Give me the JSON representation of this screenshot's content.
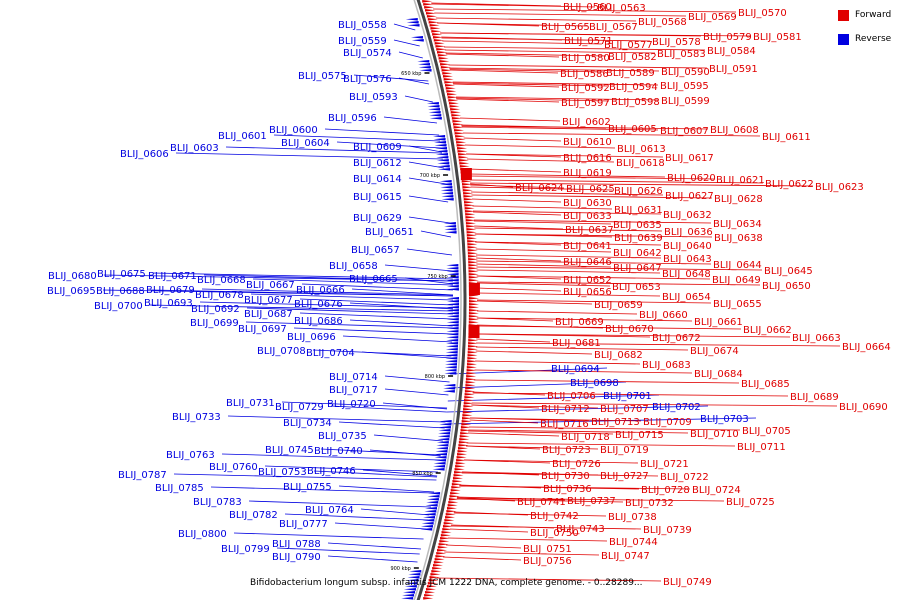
{
  "legend": {
    "forward_label": "Forward",
    "reverse_label": "Reverse",
    "forward_color": "#e00000",
    "reverse_color": "#0000e0"
  },
  "caption": "Bifidobacterium longum subsp. infantis JCM 1222 DNA, complete genome. - 0..28289...",
  "ticks": [
    "650 kbp",
    "700 kbp",
    "750 kbp",
    "800 kbp",
    "850 kbp",
    "900 kbp"
  ],
  "reverse_labels": [
    "BLIJ_0558",
    "BLIJ_0559",
    "BLIJ_0574",
    "BLIJ_0575",
    "BLIJ_0576",
    "BLIJ_0593",
    "BLIJ_0596",
    "BLIJ_0601",
    "BLIJ_0600",
    "BLIJ_0604",
    "BLIJ_0603",
    "BLIJ_0606",
    "BLIJ_0609",
    "BLIJ_0612",
    "BLIJ_0614",
    "BLIJ_0615",
    "BLIJ_0629",
    "BLIJ_0651",
    "BLIJ_0657",
    "BLIJ_0658",
    "BLIJ_0665",
    "BLIJ_0680",
    "BLIJ_0675",
    "BLIJ_0671",
    "BLIJ_0668",
    "BLIJ_0667",
    "BLIJ_0666",
    "BLIJ_0695",
    "BLIJ_0688",
    "BLIJ_0679",
    "BLIJ_0678",
    "BLIJ_0677",
    "BLIJ_0676",
    "BLIJ_0700",
    "BLIJ_0693",
    "BLIJ_0692",
    "BLIJ_0687",
    "BLIJ_0699",
    "BLIJ_0697",
    "BLIJ_0686",
    "BLIJ_0696",
    "BLIJ_0708",
    "BLIJ_0704",
    "BLIJ_0694",
    "BLIJ_0698",
    "BLIJ_0701",
    "BLIJ_0702",
    "BLIJ_0703",
    "BLIJ_0714",
    "BLIJ_0717",
    "BLIJ_0720",
    "BLIJ_0733",
    "BLIJ_0731",
    "BLIJ_0729",
    "BLIJ_0734",
    "BLIJ_0735",
    "BLIJ_0745",
    "BLIJ_0740",
    "BLIJ_0763",
    "BLIJ_0760",
    "BLIJ_0753",
    "BLIJ_0746",
    "BLIJ_0755",
    "BLIJ_0787",
    "BLIJ_0785",
    "BLIJ_0764",
    "BLIJ_0783",
    "BLIJ_0782",
    "BLIJ_0777",
    "BLIJ_0788",
    "BLIJ_0800",
    "BLIJ_0799",
    "BLIJ_0790"
  ],
  "forward_labels": [
    "BLIJ_0560",
    "BLIJ_0563",
    "BLIJ_0565",
    "BLIJ_0567",
    "BLIJ_0568",
    "BLIJ_0569",
    "BLIJ_0570",
    "BLIJ_0571",
    "BLIJ_0577",
    "BLIJ_0578",
    "BLIJ_0579",
    "BLIJ_0581",
    "BLIJ_0580",
    "BLIJ_0582",
    "BLIJ_0583",
    "BLIJ_0584",
    "BLIJ_0586",
    "BLIJ_0589",
    "BLIJ_0590",
    "BLIJ_0591",
    "BLIJ_0592",
    "BLIJ_0594",
    "BLIJ_0595",
    "BLIJ_0597",
    "BLIJ_0598",
    "BLIJ_0599",
    "BLIJ_0602",
    "BLIJ_0605",
    "BLIJ_0607",
    "BLIJ_0608",
    "BLIJ_0611",
    "BLIJ_0610",
    "BLIJ_0613",
    "BLIJ_0616",
    "BLIJ_0618",
    "BLIJ_0617",
    "BLIJ_0619",
    "BLIJ_0620",
    "BLIJ_0621",
    "BLIJ_0622",
    "BLIJ_0623",
    "BLIJ_0624",
    "BLIJ_0625",
    "BLIJ_0626",
    "BLIJ_0627",
    "BLIJ_0628",
    "BLIJ_0630",
    "BLIJ_0631",
    "BLIJ_0632",
    "BLIJ_0633",
    "BLIJ_0635",
    "BLIJ_0634",
    "BLIJ_0637",
    "BLIJ_0636",
    "BLIJ_0639",
    "BLIJ_0638",
    "BLIJ_0641",
    "BLIJ_0642",
    "BLIJ_0640",
    "BLIJ_0646",
    "BLIJ_0643",
    "BLIJ_0647",
    "BLIJ_0648",
    "BLIJ_0644",
    "BLIJ_0645",
    "BLIJ_0652",
    "BLIJ_0649",
    "BLIJ_0653",
    "BLIJ_0650",
    "BLIJ_0656",
    "BLIJ_0654",
    "BLIJ_0659",
    "BLIJ_0655",
    "BLIJ_0660",
    "BLIJ_0669",
    "BLIJ_0661",
    "BLIJ_0670",
    "BLIJ_0662",
    "BLIJ_0672",
    "BLIJ_0663",
    "BLIJ_0681",
    "BLIJ_0664",
    "BLIJ_0674",
    "BLIJ_0682",
    "BLIJ_0683",
    "BLIJ_0684",
    "BLIJ_0685",
    "BLIJ_0689",
    "BLIJ_0706",
    "BLIJ_0690",
    "BLIJ_0712",
    "BLIJ_0707",
    "BLIJ_0716",
    "BLIJ_0713",
    "BLIJ_0709",
    "BLIJ_0710",
    "BLIJ_0705",
    "BLIJ_0718",
    "BLIJ_0715",
    "BLIJ_0711",
    "BLIJ_0723",
    "BLIJ_0719",
    "BLIJ_0726",
    "BLIJ_0721",
    "BLIJ_0730",
    "BLIJ_0727",
    "BLIJ_0722",
    "BLIJ_0736",
    "BLIJ_0728",
    "BLIJ_0724",
    "BLIJ_0741",
    "BLIJ_0737",
    "BLIJ_0732",
    "BLIJ_0725",
    "BLIJ_0742",
    "BLIJ_0738",
    "BLIJ_0743",
    "BLIJ_0739",
    "BLIJ_0750",
    "BLIJ_0744",
    "BLIJ_0751",
    "BLIJ_0747",
    "BLIJ_0756",
    "BLIJ_0749"
  ]
}
